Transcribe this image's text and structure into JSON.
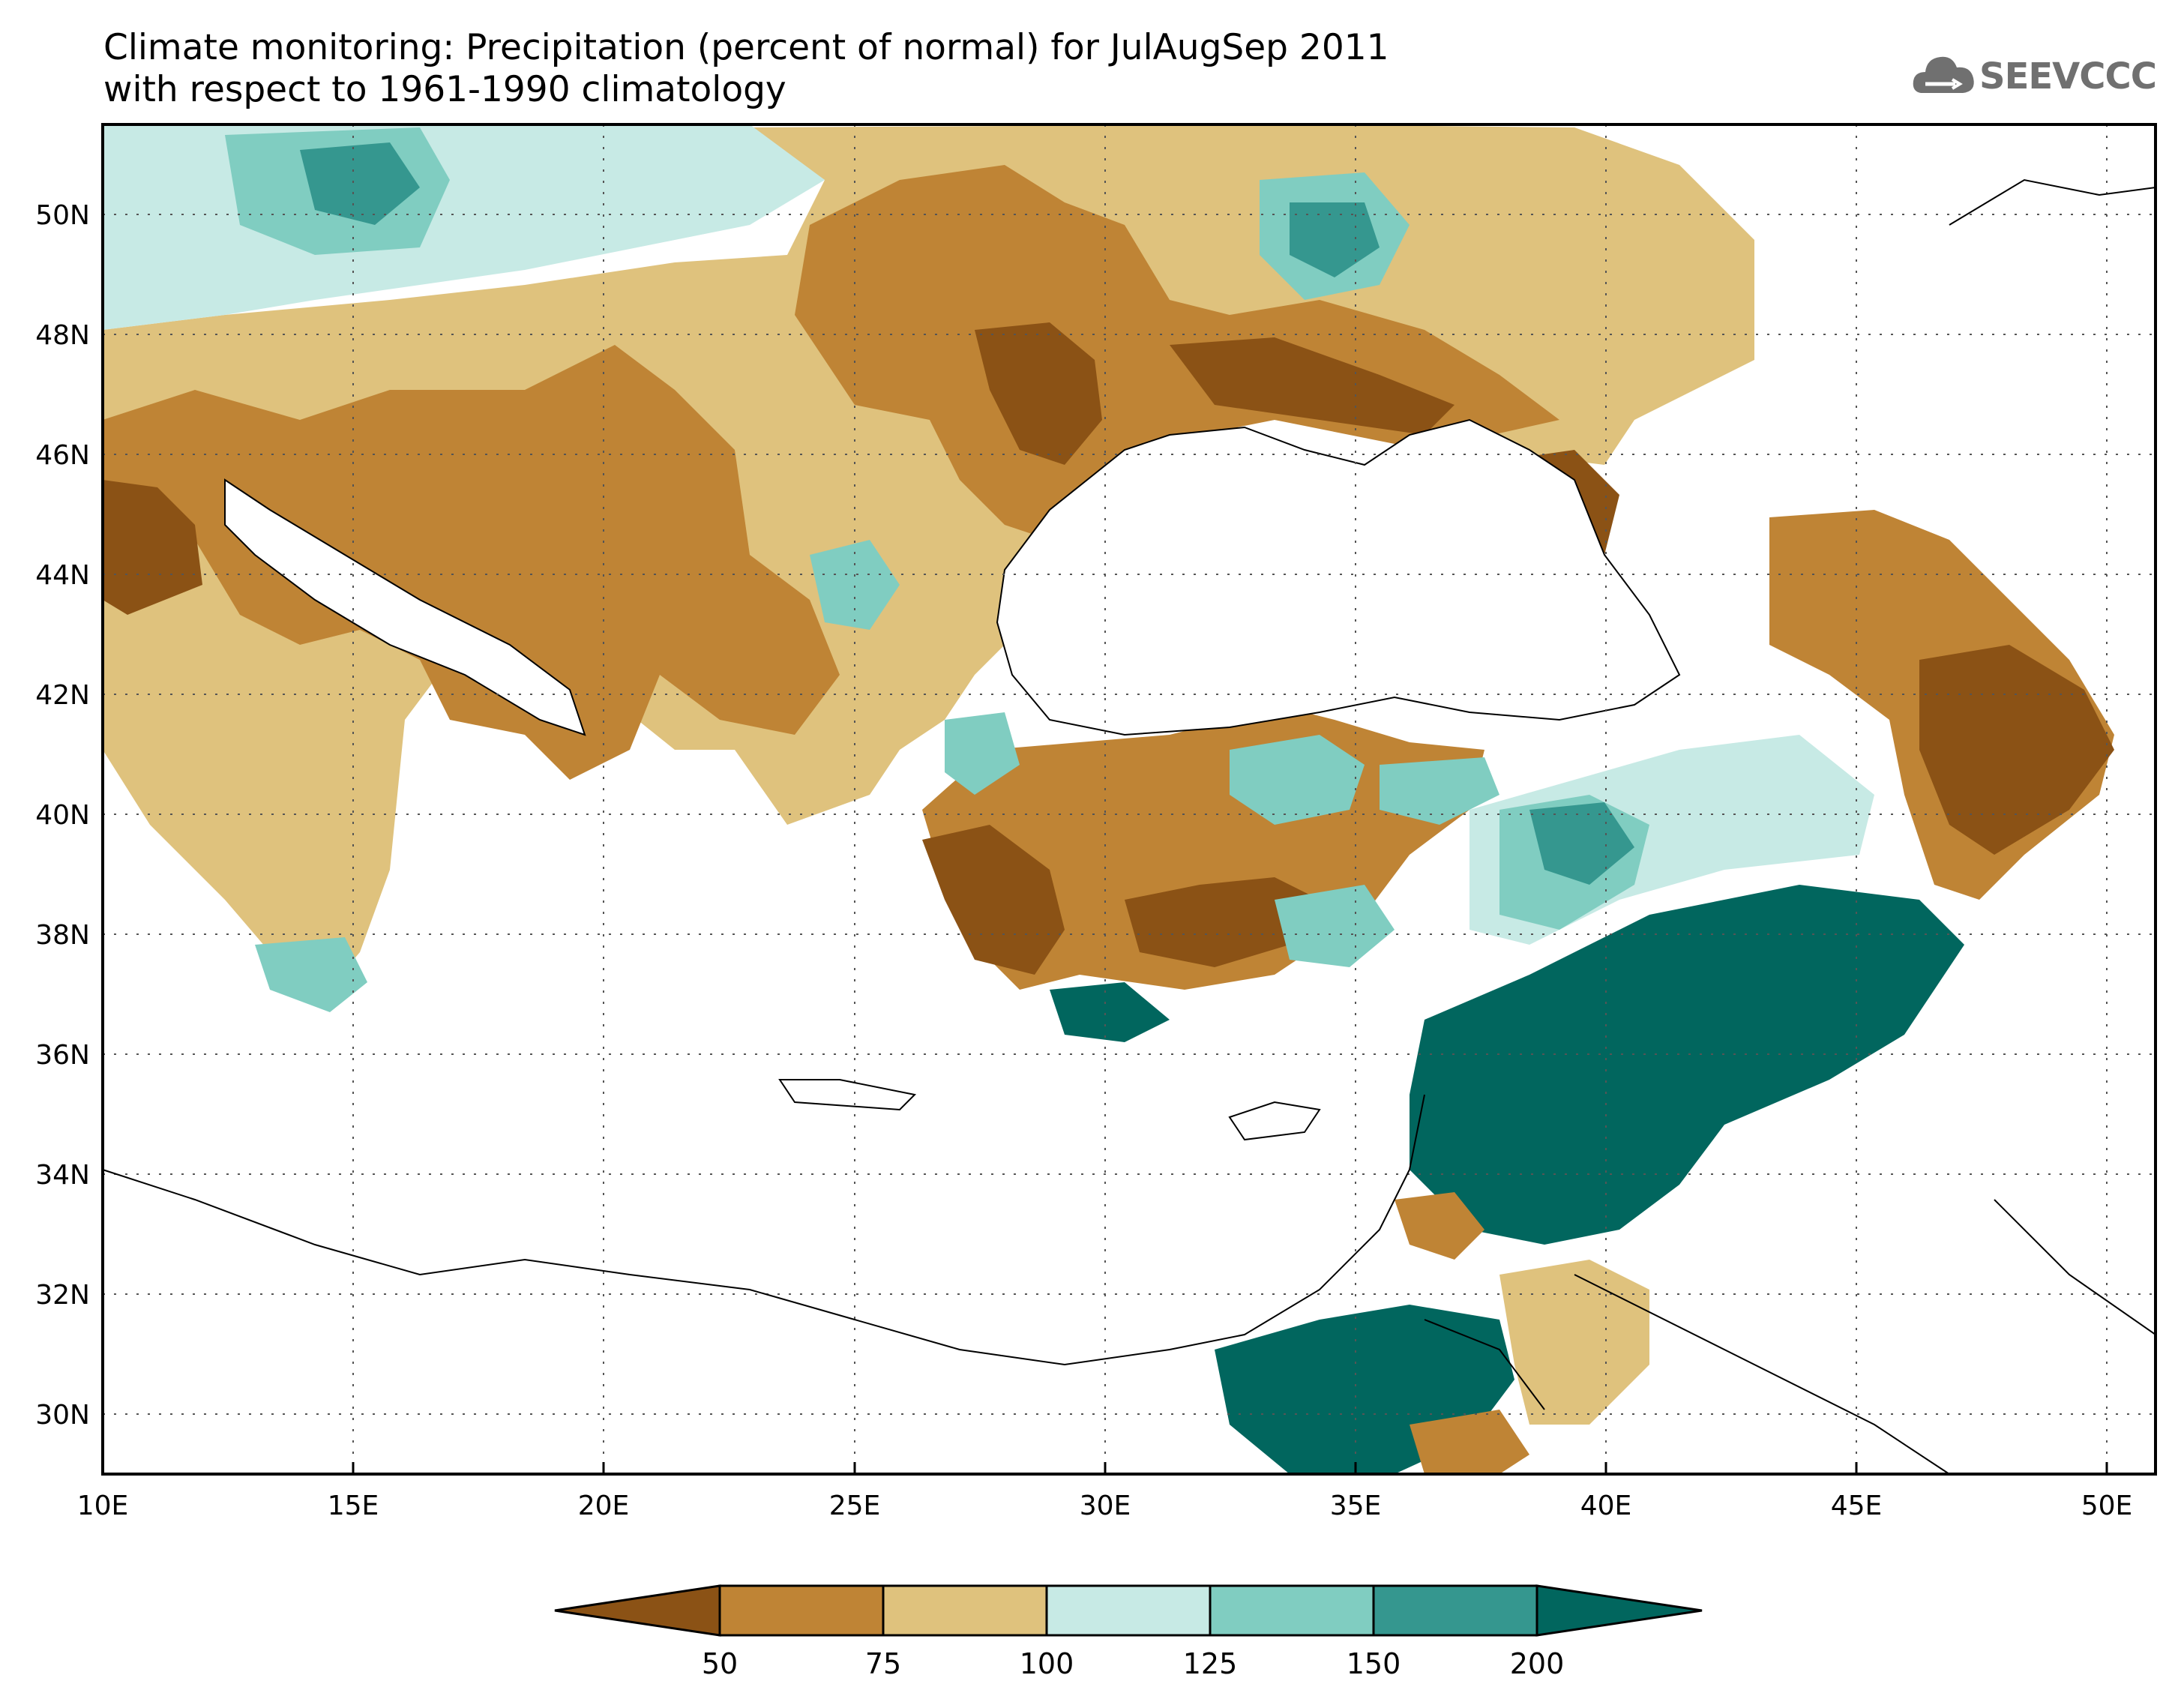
{
  "header": {
    "title_line1": "Climate monitoring: Precipitation (percent of normal) for JulAugSep 2011",
    "title_line2": "with respect to 1961-1990 climatology",
    "logo_text": "SEEVCCC"
  },
  "map": {
    "lon_range": [
      10,
      51
    ],
    "lat_range": [
      29,
      51.5
    ],
    "lon_ticks": [
      "10E",
      "15E",
      "20E",
      "25E",
      "30E",
      "35E",
      "40E",
      "45E",
      "50E"
    ],
    "lat_ticks": [
      "30N",
      "32N",
      "34N",
      "36N",
      "38N",
      "40N",
      "42N",
      "44N",
      "46N",
      "48N",
      "50N"
    ],
    "gridlines": true
  },
  "legend": {
    "ticks": [
      "50",
      "75",
      "100",
      "125",
      "150",
      "200"
    ],
    "colors": [
      "#8b5215",
      "#bf8435",
      "#dfc27d",
      "#c7eae5",
      "#80cdc1",
      "#35978f",
      "#01665e"
    ]
  }
}
